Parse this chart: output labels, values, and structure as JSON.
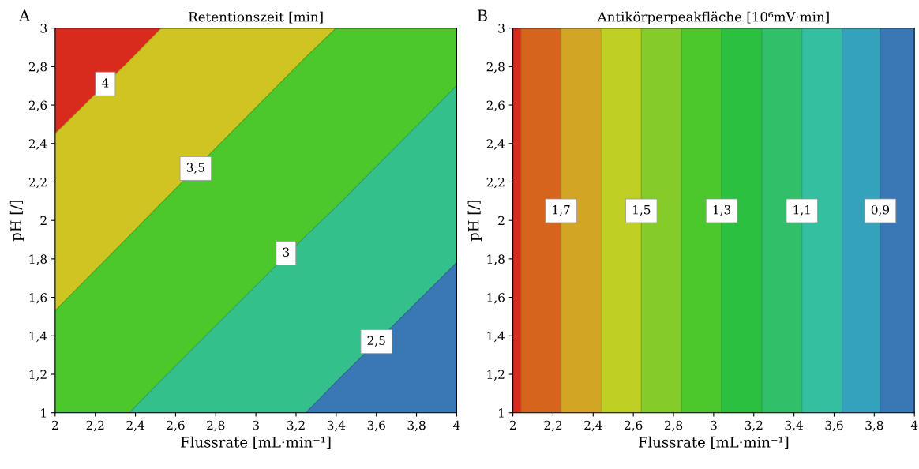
{
  "chart_data": [
    {
      "type": "area",
      "title": "Retentionszeit [min]",
      "xlabel": "Flussrate [mL·min⁻¹]",
      "ylabel": "pH [/]",
      "xlim": [
        2,
        4
      ],
      "ylim": [
        1,
        3
      ],
      "xticks": [
        2,
        {
          "value": 2.2,
          "label": "2,2"
        },
        {
          "value": 2.4,
          "label": "2,4"
        },
        {
          "value": 2.6,
          "label": "2,6"
        },
        {
          "value": 2.8,
          "label": "2,8"
        },
        3,
        {
          "value": 3.2,
          "label": "3,2"
        },
        {
          "value": 3.4,
          "label": "3,4"
        },
        {
          "value": 3.6,
          "label": "3,6"
        },
        {
          "value": 3.8,
          "label": "3,8"
        },
        4
      ],
      "yticks": [
        1,
        {
          "value": 1.2,
          "label": "1,2"
        },
        {
          "value": 1.4,
          "label": "1,4"
        },
        {
          "value": 1.6,
          "label": "1,6"
        },
        {
          "value": 1.8,
          "label": "1,8"
        },
        2,
        {
          "value": 2.2,
          "label": "2,2"
        },
        {
          "value": 2.4,
          "label": "2,4"
        },
        {
          "value": 2.6,
          "label": "2,6"
        },
        {
          "value": 2.8,
          "label": "2,8"
        },
        3
      ],
      "x": [
        2,
        2.37,
        2.53,
        3.25,
        3.4,
        4
      ],
      "series": [
        {
          "color": "#d92a1e",
          "values": [
            3,
            3,
            3,
            3,
            3,
            3
          ]
        },
        {
          "color": "#d0c423",
          "values": [
            2.45,
            2.83,
            3,
            3,
            3,
            3
          ]
        },
        {
          "color": "#4cc82c",
          "values": [
            1.53,
            1.92,
            2.09,
            2.85,
            3,
            3
          ]
        },
        {
          "color": "#33c08a",
          "values": [
            1,
            1,
            1.17,
            1.92,
            2.07,
            2.7
          ]
        },
        {
          "color": "#3a78b5",
          "values": [
            1,
            1,
            1,
            1,
            1.16,
            1.78
          ]
        }
      ],
      "annotations": [
        "A",
        {
          "text": "4",
          "x": 2.25,
          "y": 2.71
        },
        {
          "text": "3,5",
          "x": 2.7,
          "y": 2.27
        },
        {
          "text": "3",
          "x": 3.15,
          "y": 1.83
        },
        {
          "text": "2,5",
          "x": 3.6,
          "y": 1.37
        }
      ]
    },
    {
      "type": "area",
      "title": "Antikörperpeakfläche [10⁶mV·min]",
      "xlabel": "Flussrate [mL·min⁻¹]",
      "ylabel": "pH [/]",
      "xlim": [
        2,
        4
      ],
      "ylim": [
        1,
        3
      ],
      "xticks": [
        2,
        {
          "value": 2.2,
          "label": "2,2"
        },
        {
          "value": 2.4,
          "label": "2,4"
        },
        {
          "value": 2.6,
          "label": "2,6"
        },
        {
          "value": 2.8,
          "label": "2,8"
        },
        3,
        {
          "value": 3.2,
          "label": "3,2"
        },
        {
          "value": 3.4,
          "label": "3,4"
        },
        {
          "value": 3.6,
          "label": "3,6"
        },
        {
          "value": 3.8,
          "label": "3,8"
        },
        4
      ],
      "yticks": [
        1,
        {
          "value": 1.2,
          "label": "1,2"
        },
        {
          "value": 1.4,
          "label": "1,4"
        },
        {
          "value": 1.6,
          "label": "1,6"
        },
        {
          "value": 1.8,
          "label": "1,8"
        },
        2,
        {
          "value": 2.2,
          "label": "2,2"
        },
        {
          "value": 2.4,
          "label": "2,4"
        },
        {
          "value": 2.6,
          "label": "2,6"
        },
        {
          "value": 2.8,
          "label": "2,8"
        },
        3
      ],
      "bands": [
        {
          "axis": "x",
          "from": 2,
          "to": 2.04,
          "color": "#dc2a1e"
        },
        {
          "axis": "x",
          "from": 2.04,
          "to": 2.24,
          "color": "#d6641c"
        },
        {
          "axis": "x",
          "from": 2.24,
          "to": 2.44,
          "color": "#d3a524"
        },
        {
          "axis": "x",
          "from": 2.44,
          "to": 2.64,
          "color": "#bfcf24"
        },
        {
          "axis": "x",
          "from": 2.64,
          "to": 2.84,
          "color": "#85cb2a"
        },
        {
          "axis": "x",
          "from": 2.84,
          "to": 3.04,
          "color": "#4cc82c"
        },
        {
          "axis": "x",
          "from": 3.04,
          "to": 3.24,
          "color": "#2cc040"
        },
        {
          "axis": "x",
          "from": 3.24,
          "to": 3.44,
          "color": "#31bf6a"
        },
        {
          "axis": "x",
          "from": 3.44,
          "to": 3.64,
          "color": "#33bfa0"
        },
        {
          "axis": "x",
          "from": 3.64,
          "to": 3.83,
          "color": "#35a2bb"
        },
        {
          "axis": "x",
          "from": 3.83,
          "to": 4,
          "color": "#3a78b5"
        }
      ],
      "annotations": [
        "B",
        {
          "text": "1,7",
          "x": 2.24,
          "y": 2.05
        },
        {
          "text": "1,5",
          "x": 2.64,
          "y": 2.05
        },
        {
          "text": "1,3",
          "x": 3.04,
          "y": 2.05
        },
        {
          "text": "1,1",
          "x": 3.44,
          "y": 2.05
        },
        {
          "text": "0,9",
          "x": 3.83,
          "y": 2.05
        }
      ]
    }
  ]
}
